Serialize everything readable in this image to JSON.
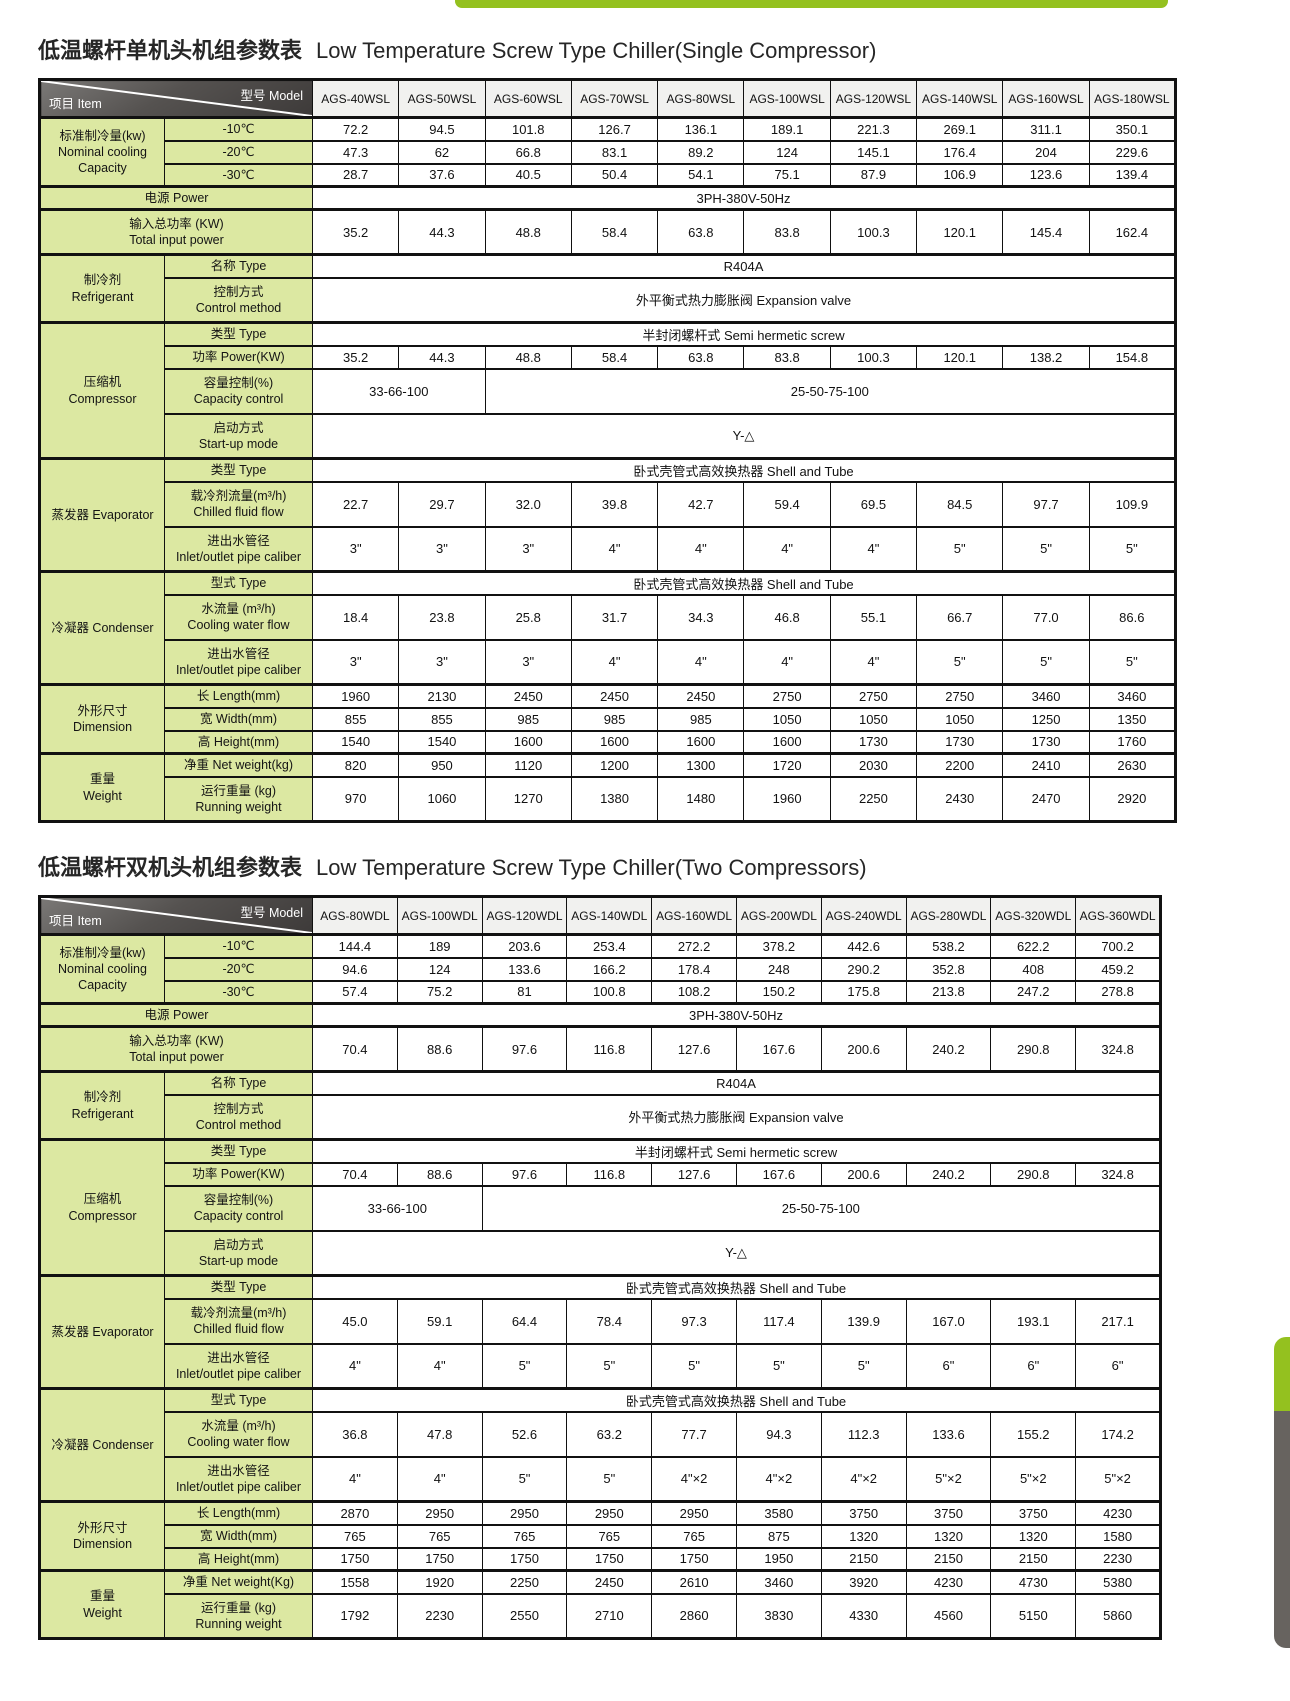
{
  "accent": {
    "green": "#94c11f",
    "gray": "#67635f",
    "label_bg": "#dce8a2"
  },
  "tables": [
    {
      "title_cn": "低温螺杆单机头机组参数表",
      "title_en": "Low Temperature Screw Type Chiller(Single Compressor)",
      "corner_model": "型号  Model",
      "corner_item": "项目  Item",
      "models": [
        "AGS-40WSL",
        "AGS-50WSL",
        "AGS-60WSL",
        "AGS-70WSL",
        "AGS-80WSL",
        "AGS-100WSL",
        "AGS-120WSL",
        "AGS-140WSL",
        "AGS-160WSL",
        "AGS-180WSL"
      ],
      "rows": [
        {
          "group": [
            "标准制冷量(kw)",
            "Nominal cooling",
            "Capacity"
          ],
          "group_rowspan": 3,
          "label": [
            "-10℃"
          ],
          "values": [
            "72.2",
            "94.5",
            "101.8",
            "126.7",
            "136.1",
            "189.1",
            "221.3",
            "269.1",
            "311.1",
            "350.1"
          ]
        },
        {
          "label": [
            "-20℃"
          ],
          "values": [
            "47.3",
            "62",
            "66.8",
            "83.1",
            "89.2",
            "124",
            "145.1",
            "176.4",
            "204",
            "229.6"
          ]
        },
        {
          "label": [
            "-30℃"
          ],
          "values": [
            "28.7",
            "37.6",
            "40.5",
            "50.4",
            "54.1",
            "75.1",
            "87.9",
            "106.9",
            "123.6",
            "139.4"
          ]
        },
        {
          "label": [
            "电源  Power"
          ],
          "label_span2": true,
          "spans": [
            {
              "text": "3PH-380V-50Hz",
              "span": 10
            }
          ]
        },
        {
          "label": [
            "输入总功率 (KW)",
            "Total input power"
          ],
          "label_span2": true,
          "values": [
            "35.2",
            "44.3",
            "48.8",
            "58.4",
            "63.8",
            "83.8",
            "100.3",
            "120.1",
            "145.4",
            "162.4"
          ]
        },
        {
          "group": [
            "制冷剂",
            "Refrigerant"
          ],
          "group_rowspan": 2,
          "label": [
            "名称  Type"
          ],
          "spans": [
            {
              "text": "R404A",
              "span": 10
            }
          ]
        },
        {
          "label": [
            "控制方式",
            "Control method"
          ],
          "spans": [
            {
              "text": "外平衡式热力膨胀阀  Expansion valve",
              "span": 10
            }
          ]
        },
        {
          "group": [
            "压缩机",
            "Compressor"
          ],
          "group_rowspan": 4,
          "label": [
            "类型  Type"
          ],
          "spans": [
            {
              "text": "半封闭螺杆式  Semi hermetic screw",
              "span": 10
            }
          ]
        },
        {
          "label": [
            "功率 Power(KW)"
          ],
          "values": [
            "35.2",
            "44.3",
            "48.8",
            "58.4",
            "63.8",
            "83.8",
            "100.3",
            "120.1",
            "138.2",
            "154.8"
          ]
        },
        {
          "label": [
            "容量控制(%)",
            "Capacity control"
          ],
          "spans": [
            {
              "text": "33-66-100",
              "span": 2
            },
            {
              "text": "25-50-75-100",
              "span": 8
            }
          ]
        },
        {
          "label": [
            "启动方式",
            "Start-up mode"
          ],
          "spans": [
            {
              "text": "Y-△",
              "span": 10
            }
          ]
        },
        {
          "group": [
            "蒸发器  Evaporator"
          ],
          "group_rowspan": 3,
          "label": [
            "类型  Type"
          ],
          "spans": [
            {
              "text": "卧式壳管式高效换热器  Shell and Tube",
              "span": 10
            }
          ]
        },
        {
          "label": [
            "载冷剂流量(m³/h)",
            "Chilled fluid flow"
          ],
          "values": [
            "22.7",
            "29.7",
            "32.0",
            "39.8",
            "42.7",
            "59.4",
            "69.5",
            "84.5",
            "97.7",
            "109.9"
          ]
        },
        {
          "label": [
            "进出水管径",
            "Inlet/outlet pipe caliber"
          ],
          "values": [
            "3\"",
            "3\"",
            "3\"",
            "4\"",
            "4\"",
            "4\"",
            "4\"",
            "5\"",
            "5\"",
            "5\""
          ]
        },
        {
          "group": [
            "冷凝器  Condenser"
          ],
          "group_rowspan": 3,
          "label": [
            "型式  Type"
          ],
          "spans": [
            {
              "text": "卧式壳管式高效换热器  Shell and Tube",
              "span": 10
            }
          ]
        },
        {
          "label": [
            "水流量 (m³/h)",
            "Cooling water flow"
          ],
          "values": [
            "18.4",
            "23.8",
            "25.8",
            "31.7",
            "34.3",
            "46.8",
            "55.1",
            "66.7",
            "77.0",
            "86.6"
          ]
        },
        {
          "label": [
            "进出水管径",
            "Inlet/outlet pipe caliber"
          ],
          "values": [
            "3\"",
            "3\"",
            "3\"",
            "4\"",
            "4\"",
            "4\"",
            "4\"",
            "5\"",
            "5\"",
            "5\""
          ]
        },
        {
          "group": [
            "外形尺寸",
            "Dimension"
          ],
          "group_rowspan": 3,
          "label": [
            "长  Length(mm)"
          ],
          "values": [
            "1960",
            "2130",
            "2450",
            "2450",
            "2450",
            "2750",
            "2750",
            "2750",
            "3460",
            "3460"
          ]
        },
        {
          "label": [
            "宽  Width(mm)"
          ],
          "values": [
            "855",
            "855",
            "985",
            "985",
            "985",
            "1050",
            "1050",
            "1050",
            "1250",
            "1350"
          ]
        },
        {
          "label": [
            "高  Height(mm)"
          ],
          "values": [
            "1540",
            "1540",
            "1600",
            "1600",
            "1600",
            "1600",
            "1730",
            "1730",
            "1730",
            "1760"
          ]
        },
        {
          "group": [
            "重量",
            "Weight"
          ],
          "group_rowspan": 2,
          "label": [
            "净重  Net weight(kg)"
          ],
          "values": [
            "820",
            "950",
            "1120",
            "1200",
            "1300",
            "1720",
            "2030",
            "2200",
            "2410",
            "2630"
          ]
        },
        {
          "label": [
            "运行重量 (kg)",
            "Running weight"
          ],
          "values": [
            "970",
            "1060",
            "1270",
            "1380",
            "1480",
            "1960",
            "2250",
            "2430",
            "2470",
            "2920"
          ]
        }
      ]
    },
    {
      "title_cn": "低温螺杆双机头机组参数表",
      "title_en": "Low Temperature Screw Type Chiller(Two Compressors)",
      "corner_model": "型号  Model",
      "corner_item": "项目  Item",
      "models": [
        "AGS-80WDL",
        "AGS-100WDL",
        "AGS-120WDL",
        "AGS-140WDL",
        "AGS-160WDL",
        "AGS-200WDL",
        "AGS-240WDL",
        "AGS-280WDL",
        "AGS-320WDL",
        "AGS-360WDL"
      ],
      "rows": [
        {
          "group": [
            "标准制冷量(kw)",
            "Nominal cooling",
            "Capacity"
          ],
          "group_rowspan": 3,
          "label": [
            "-10℃"
          ],
          "values": [
            "144.4",
            "189",
            "203.6",
            "253.4",
            "272.2",
            "378.2",
            "442.6",
            "538.2",
            "622.2",
            "700.2"
          ]
        },
        {
          "label": [
            "-20℃"
          ],
          "values": [
            "94.6",
            "124",
            "133.6",
            "166.2",
            "178.4",
            "248",
            "290.2",
            "352.8",
            "408",
            "459.2"
          ]
        },
        {
          "label": [
            "-30℃"
          ],
          "values": [
            "57.4",
            "75.2",
            "81",
            "100.8",
            "108.2",
            "150.2",
            "175.8",
            "213.8",
            "247.2",
            "278.8"
          ]
        },
        {
          "label": [
            "电源  Power"
          ],
          "label_span2": true,
          "spans": [
            {
              "text": "3PH-380V-50Hz",
              "span": 10
            }
          ]
        },
        {
          "label": [
            "输入总功率 (KW)",
            "Total input power"
          ],
          "label_span2": true,
          "values": [
            "70.4",
            "88.6",
            "97.6",
            "116.8",
            "127.6",
            "167.6",
            "200.6",
            "240.2",
            "290.8",
            "324.8"
          ]
        },
        {
          "group": [
            "制冷剂",
            "Refrigerant"
          ],
          "group_rowspan": 2,
          "label": [
            "名称  Type"
          ],
          "spans": [
            {
              "text": "R404A",
              "span": 10
            }
          ]
        },
        {
          "label": [
            "控制方式",
            "Control method"
          ],
          "spans": [
            {
              "text": "外平衡式热力膨胀阀  Expansion valve",
              "span": 10
            }
          ]
        },
        {
          "group": [
            "压缩机",
            "Compressor"
          ],
          "group_rowspan": 4,
          "label": [
            "类型  Type"
          ],
          "spans": [
            {
              "text": "半封闭螺杆式  Semi hermetic screw",
              "span": 10
            }
          ]
        },
        {
          "label": [
            "功率 Power(KW)"
          ],
          "values": [
            "70.4",
            "88.6",
            "97.6",
            "116.8",
            "127.6",
            "167.6",
            "200.6",
            "240.2",
            "290.8",
            "324.8"
          ]
        },
        {
          "label": [
            "容量控制(%)",
            "Capacity control"
          ],
          "spans": [
            {
              "text": "33-66-100",
              "span": 2
            },
            {
              "text": "25-50-75-100",
              "span": 8
            }
          ]
        },
        {
          "label": [
            "启动方式",
            "Start-up mode"
          ],
          "spans": [
            {
              "text": "Y-△",
              "span": 10
            }
          ]
        },
        {
          "group": [
            "蒸发器  Evaporator"
          ],
          "group_rowspan": 3,
          "label": [
            "类型  Type"
          ],
          "spans": [
            {
              "text": "卧式壳管式高效换热器  Shell and Tube",
              "span": 10
            }
          ]
        },
        {
          "label": [
            "载冷剂流量(m³/h)",
            "Chilled fluid flow"
          ],
          "values": [
            "45.0",
            "59.1",
            "64.4",
            "78.4",
            "97.3",
            "117.4",
            "139.9",
            "167.0",
            "193.1",
            "217.1"
          ]
        },
        {
          "label": [
            "进出水管径",
            "Inlet/outlet pipe caliber"
          ],
          "values": [
            "4\"",
            "4\"",
            "5\"",
            "5\"",
            "5\"",
            "5\"",
            "5\"",
            "6\"",
            "6\"",
            "6\""
          ]
        },
        {
          "group": [
            "冷凝器  Condenser"
          ],
          "group_rowspan": 3,
          "label": [
            "型式  Type"
          ],
          "spans": [
            {
              "text": "卧式壳管式高效换热器  Shell and Tube",
              "span": 10
            }
          ]
        },
        {
          "label": [
            "水流量 (m³/h)",
            "Cooling water flow"
          ],
          "values": [
            "36.8",
            "47.8",
            "52.6",
            "63.2",
            "77.7",
            "94.3",
            "112.3",
            "133.6",
            "155.2",
            "174.2"
          ]
        },
        {
          "label": [
            "进出水管径",
            "Inlet/outlet pipe caliber"
          ],
          "values": [
            "4\"",
            "4\"",
            "5\"",
            "5\"",
            "4\"×2",
            "4\"×2",
            "4\"×2",
            "5\"×2",
            "5\"×2",
            "5\"×2"
          ]
        },
        {
          "group": [
            "外形尺寸",
            "Dimension"
          ],
          "group_rowspan": 3,
          "label": [
            "长  Length(mm)"
          ],
          "values": [
            "2870",
            "2950",
            "2950",
            "2950",
            "2950",
            "3580",
            "3750",
            "3750",
            "3750",
            "4230"
          ]
        },
        {
          "label": [
            "宽  Width(mm)"
          ],
          "values": [
            "765",
            "765",
            "765",
            "765",
            "765",
            "875",
            "1320",
            "1320",
            "1320",
            "1580"
          ]
        },
        {
          "label": [
            "高  Height(mm)"
          ],
          "values": [
            "1750",
            "1750",
            "1750",
            "1750",
            "1750",
            "1950",
            "2150",
            "2150",
            "2150",
            "2230"
          ]
        },
        {
          "group": [
            "重量",
            "Weight"
          ],
          "group_rowspan": 2,
          "label": [
            "净重  Net weight(Kg)"
          ],
          "values": [
            "1558",
            "1920",
            "2250",
            "2450",
            "2610",
            "3460",
            "3920",
            "4230",
            "4730",
            "5380"
          ]
        },
        {
          "label": [
            "运行重量 (kg)",
            "Running weight"
          ],
          "values": [
            "1792",
            "2230",
            "2550",
            "2710",
            "2860",
            "3830",
            "4330",
            "4560",
            "5150",
            "5860"
          ]
        }
      ]
    }
  ]
}
